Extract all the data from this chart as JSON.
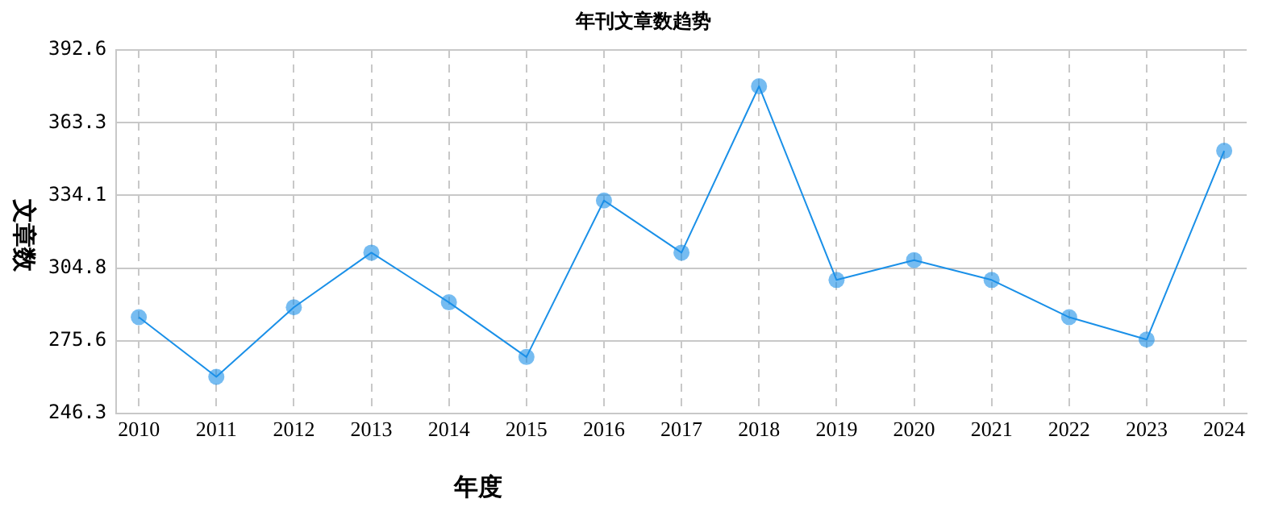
{
  "chart_data": {
    "type": "line",
    "title": "年刊文章数趋势",
    "xlabel": "年度",
    "ylabel": "文章数",
    "categories": [
      "2010",
      "2011",
      "2012",
      "2013",
      "2014",
      "2015",
      "2016",
      "2017",
      "2018",
      "2019",
      "2020",
      "2021",
      "2022",
      "2023",
      "2024"
    ],
    "series": [
      {
        "color": "#1a90e8",
        "values": [
          285,
          261,
          289,
          311,
          291,
          269,
          332,
          311,
          378,
          300,
          308,
          300,
          285,
          276,
          352
        ]
      }
    ],
    "ylim": [
      246.3,
      392.6
    ],
    "yticks": [
      246.3,
      275.6,
      304.8,
      334.1,
      363.3,
      392.6
    ],
    "grid": true,
    "marker": "circle",
    "line_style": "solid",
    "legend": false
  }
}
